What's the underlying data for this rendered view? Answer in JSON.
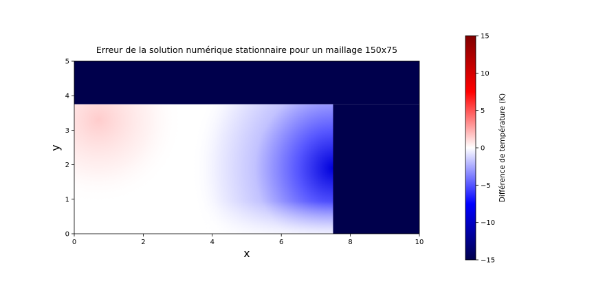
{
  "chart_data": {
    "type": "heatmap",
    "title": "Erreur de la solution numérique stationnaire pour un maillage 150x75",
    "xlabel": "x",
    "ylabel": "y",
    "xlim": [
      0,
      10
    ],
    "ylim": [
      0,
      5
    ],
    "x_ticks": [
      0,
      2,
      4,
      6,
      8,
      10
    ],
    "y_ticks": [
      0,
      1,
      2,
      3,
      4,
      5
    ],
    "colorbar": {
      "label": "Différence de température (K)",
      "range": [
        -15,
        15
      ],
      "ticks": [
        -15,
        -10,
        -5,
        0,
        5,
        10,
        15
      ],
      "tick_labels": [
        "−15",
        "−10",
        "−5",
        "0",
        "5",
        "10",
        "15"
      ],
      "colormap": "seismic",
      "colors": [
        "#00004c",
        "#0000ff",
        "#ffffff",
        "#ff0000",
        "#800000"
      ]
    },
    "regions": [
      {
        "name": "solid-region-top",
        "x": [
          0,
          10
        ],
        "y": [
          3.75,
          5
        ],
        "value": -15
      },
      {
        "name": "solid-region-right",
        "x": [
          7.5,
          10
        ],
        "y": [
          0,
          3.75
        ],
        "value": -15
      },
      {
        "name": "error-field",
        "x": [
          0,
          7.5
        ],
        "y": [
          0,
          3.75
        ],
        "value_min": -9,
        "value_max": 1.5
      }
    ]
  }
}
